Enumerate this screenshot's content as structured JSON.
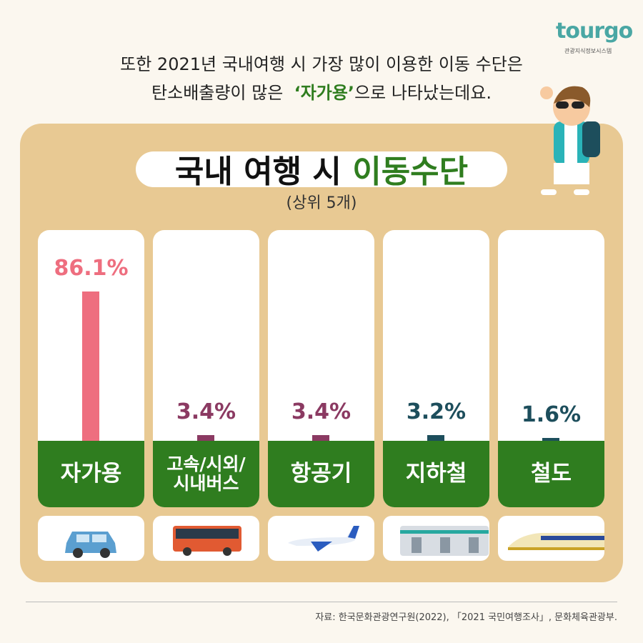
{
  "logo": {
    "brand": "tourgo",
    "subtitle": "관광지식정보시스템"
  },
  "intro": {
    "line1": "또한 2021년 국내여행 시 가장 많이 이용한 이동 수단은",
    "line2_before": "탄소배출량이 많은",
    "line2_highlight": "‘자가용’",
    "line2_after": "으로 나타났는데요."
  },
  "chart_data": {
    "type": "bar",
    "title": "국내 여행 시",
    "title_highlight": "이동수단",
    "subtitle": "(상위 5개)",
    "categories": [
      "자가용",
      "고속/시외/시내버스",
      "항공기",
      "지하철",
      "철도"
    ],
    "values": [
      86.1,
      3.4,
      3.4,
      3.2,
      1.6
    ],
    "value_labels": [
      "86.1%",
      "3.4%",
      "3.4%",
      "3.2%",
      "1.6%"
    ],
    "colors": [
      "#ee6e7f",
      "#8b3a62",
      "#8b3a62",
      "#1d4e5c",
      "#1d4e5c"
    ]
  },
  "source": "자료: 한국문화관광연구원(2022), 「2021 국민여행조사」, 문화체육관광부."
}
